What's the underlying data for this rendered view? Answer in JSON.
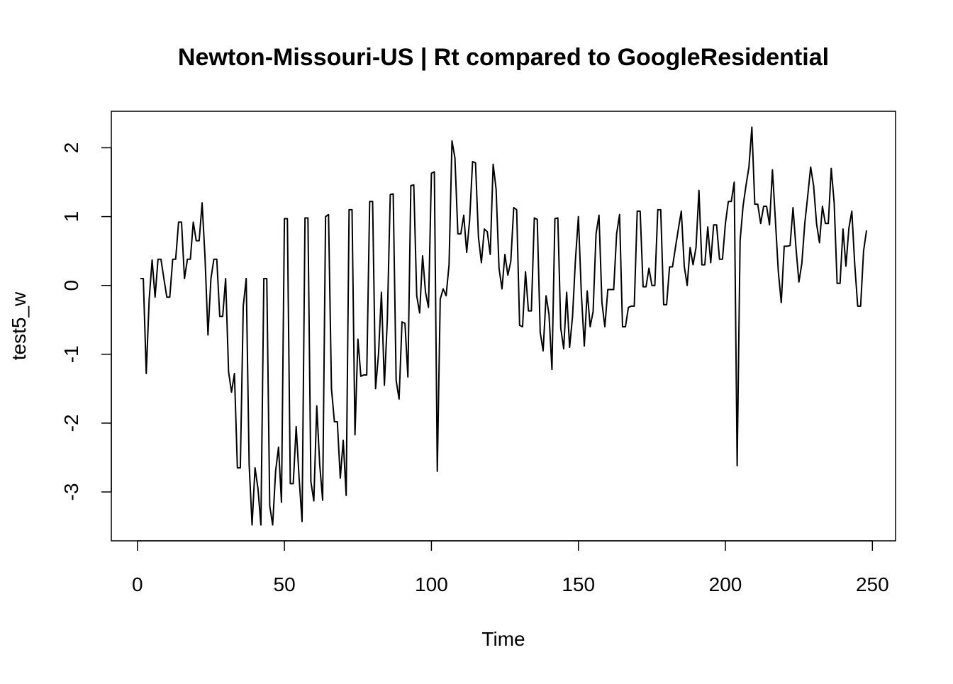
{
  "chart_data": {
    "type": "line",
    "title": "Newton-Missouri-US | Rt compared to GoogleResidential",
    "xlabel": "Time",
    "ylabel": "test5_w",
    "color": "#000000",
    "x": [
      1,
      2,
      3,
      4,
      5,
      6,
      7,
      8,
      9,
      10,
      11,
      12,
      13,
      14,
      15,
      16,
      17,
      18,
      19,
      20,
      21,
      22,
      23,
      24,
      25,
      26,
      27,
      28,
      29,
      30,
      31,
      32,
      33,
      34,
      35,
      36,
      37,
      38,
      39,
      40,
      41,
      42,
      43,
      44,
      45,
      46,
      47,
      48,
      49,
      50,
      51,
      52,
      53,
      54,
      55,
      56,
      57,
      58,
      59,
      60,
      61,
      62,
      63,
      64,
      65,
      66,
      67,
      68,
      69,
      70,
      71,
      72,
      73,
      74,
      75,
      76,
      77,
      78,
      79,
      80,
      81,
      82,
      83,
      84,
      85,
      86,
      87,
      88,
      89,
      90,
      91,
      92,
      93,
      94,
      95,
      96,
      97,
      98,
      99,
      100,
      101,
      102,
      103,
      104,
      105,
      106,
      107,
      108,
      109,
      110,
      111,
      112,
      113,
      114,
      115,
      116,
      117,
      118,
      119,
      120,
      121,
      122,
      123,
      124,
      125,
      126,
      127,
      128,
      129,
      130,
      131,
      132,
      133,
      134,
      135,
      136,
      137,
      138,
      139,
      140,
      141,
      142,
      143,
      144,
      145,
      146,
      147,
      148,
      149,
      150,
      151,
      152,
      153,
      154,
      155,
      156,
      157,
      158,
      159,
      160,
      161,
      162,
      163,
      164,
      165,
      166,
      167,
      168,
      169,
      170,
      171,
      172,
      173,
      174,
      175,
      176,
      177,
      178,
      179,
      180,
      181,
      182,
      183,
      184,
      185,
      186,
      187,
      188,
      189,
      190,
      191,
      192,
      193,
      194,
      195,
      196,
      197,
      198,
      199,
      200,
      201,
      202,
      203,
      204,
      205,
      206,
      207,
      208,
      209,
      210,
      211,
      212,
      213,
      214,
      215,
      216,
      217,
      218,
      219,
      220,
      221,
      222,
      223,
      224,
      225,
      226,
      227,
      228,
      229,
      230,
      231,
      232,
      233,
      234,
      235,
      236,
      237,
      238,
      239,
      240,
      241,
      242,
      243,
      244,
      245,
      246,
      247,
      248
    ],
    "values": [
      0.1,
      0.1,
      -1.28,
      -0.2,
      0.37,
      -0.17,
      0.38,
      0.38,
      0.1,
      -0.17,
      -0.17,
      0.38,
      0.38,
      0.92,
      0.92,
      0.1,
      0.38,
      0.38,
      0.92,
      0.65,
      0.65,
      1.2,
      0.4,
      -0.72,
      0.1,
      0.38,
      0.38,
      -0.45,
      -0.45,
      0.1,
      -1.25,
      -1.55,
      -1.28,
      -2.65,
      -2.65,
      -0.3,
      0.1,
      -2.6,
      -3.48,
      -2.65,
      -2.95,
      -3.48,
      0.1,
      0.1,
      -3.2,
      -3.48,
      -2.7,
      -2.35,
      -3.15,
      0.97,
      0.97,
      -2.88,
      -2.88,
      -2.05,
      -2.8,
      -3.43,
      0.98,
      0.98,
      -2.85,
      -3.13,
      -1.75,
      -2.6,
      -3.12,
      1.0,
      1.03,
      -1.5,
      -1.98,
      -1.98,
      -2.8,
      -2.25,
      -3.05,
      1.1,
      1.1,
      -2.17,
      -0.78,
      -1.32,
      -1.3,
      -1.3,
      1.22,
      1.22,
      -1.5,
      -1.0,
      -0.1,
      -1.45,
      -0.5,
      1.32,
      1.33,
      -1.38,
      -1.65,
      -0.53,
      -0.55,
      -1.33,
      1.45,
      1.46,
      -0.15,
      -0.4,
      0.43,
      -0.1,
      -0.32,
      1.63,
      1.65,
      -2.7,
      -0.2,
      -0.05,
      -0.15,
      0.3,
      2.1,
      1.85,
      0.75,
      0.75,
      1.02,
      0.48,
      0.95,
      1.8,
      1.78,
      0.7,
      0.33,
      0.82,
      0.78,
      0.45,
      1.76,
      1.4,
      0.25,
      -0.05,
      0.45,
      0.15,
      0.35,
      1.13,
      1.1,
      -0.58,
      -0.6,
      0.2,
      -0.37,
      -0.37,
      0.98,
      0.96,
      -0.68,
      -0.95,
      -0.15,
      -0.42,
      -1.22,
      0.97,
      0.98,
      -0.62,
      -0.92,
      -0.1,
      -0.9,
      -0.45,
      0.38,
      1.0,
      -0.12,
      -0.88,
      -0.08,
      -0.6,
      -0.38,
      0.75,
      1.02,
      -0.25,
      -0.6,
      -0.06,
      -0.06,
      -0.06,
      0.75,
      1.03,
      -0.6,
      -0.6,
      -0.32,
      -0.3,
      -0.3,
      1.08,
      1.08,
      -0.02,
      -0.02,
      0.25,
      0.0,
      0.0,
      1.1,
      1.1,
      -0.28,
      -0.28,
      0.27,
      0.27,
      0.55,
      0.82,
      1.08,
      0.28,
      0.0,
      0.55,
      0.3,
      0.55,
      1.38,
      0.3,
      0.3,
      0.85,
      0.33,
      0.88,
      0.88,
      0.38,
      0.38,
      0.9,
      1.22,
      1.22,
      1.5,
      -2.62,
      0.65,
      1.15,
      1.45,
      1.72,
      2.3,
      1.18,
      1.18,
      0.9,
      1.15,
      1.15,
      0.88,
      1.68,
      0.95,
      0.2,
      -0.25,
      0.57,
      0.57,
      0.58,
      1.13,
      0.55,
      0.05,
      0.32,
      0.9,
      1.3,
      1.72,
      1.45,
      0.9,
      0.62,
      1.15,
      0.9,
      0.9,
      1.7,
      1.2,
      0.03,
      0.03,
      0.82,
      0.28,
      0.83,
      1.08,
      0.3,
      -0.3,
      -0.3,
      0.5,
      0.8
    ],
    "xlim": [
      -8.88,
      257.88
    ],
    "ylim": [
      -3.71,
      2.53
    ],
    "xticks": [
      0,
      50,
      100,
      150,
      200,
      250
    ],
    "yticks": [
      -3,
      -2,
      -1,
      0,
      1,
      2
    ]
  }
}
